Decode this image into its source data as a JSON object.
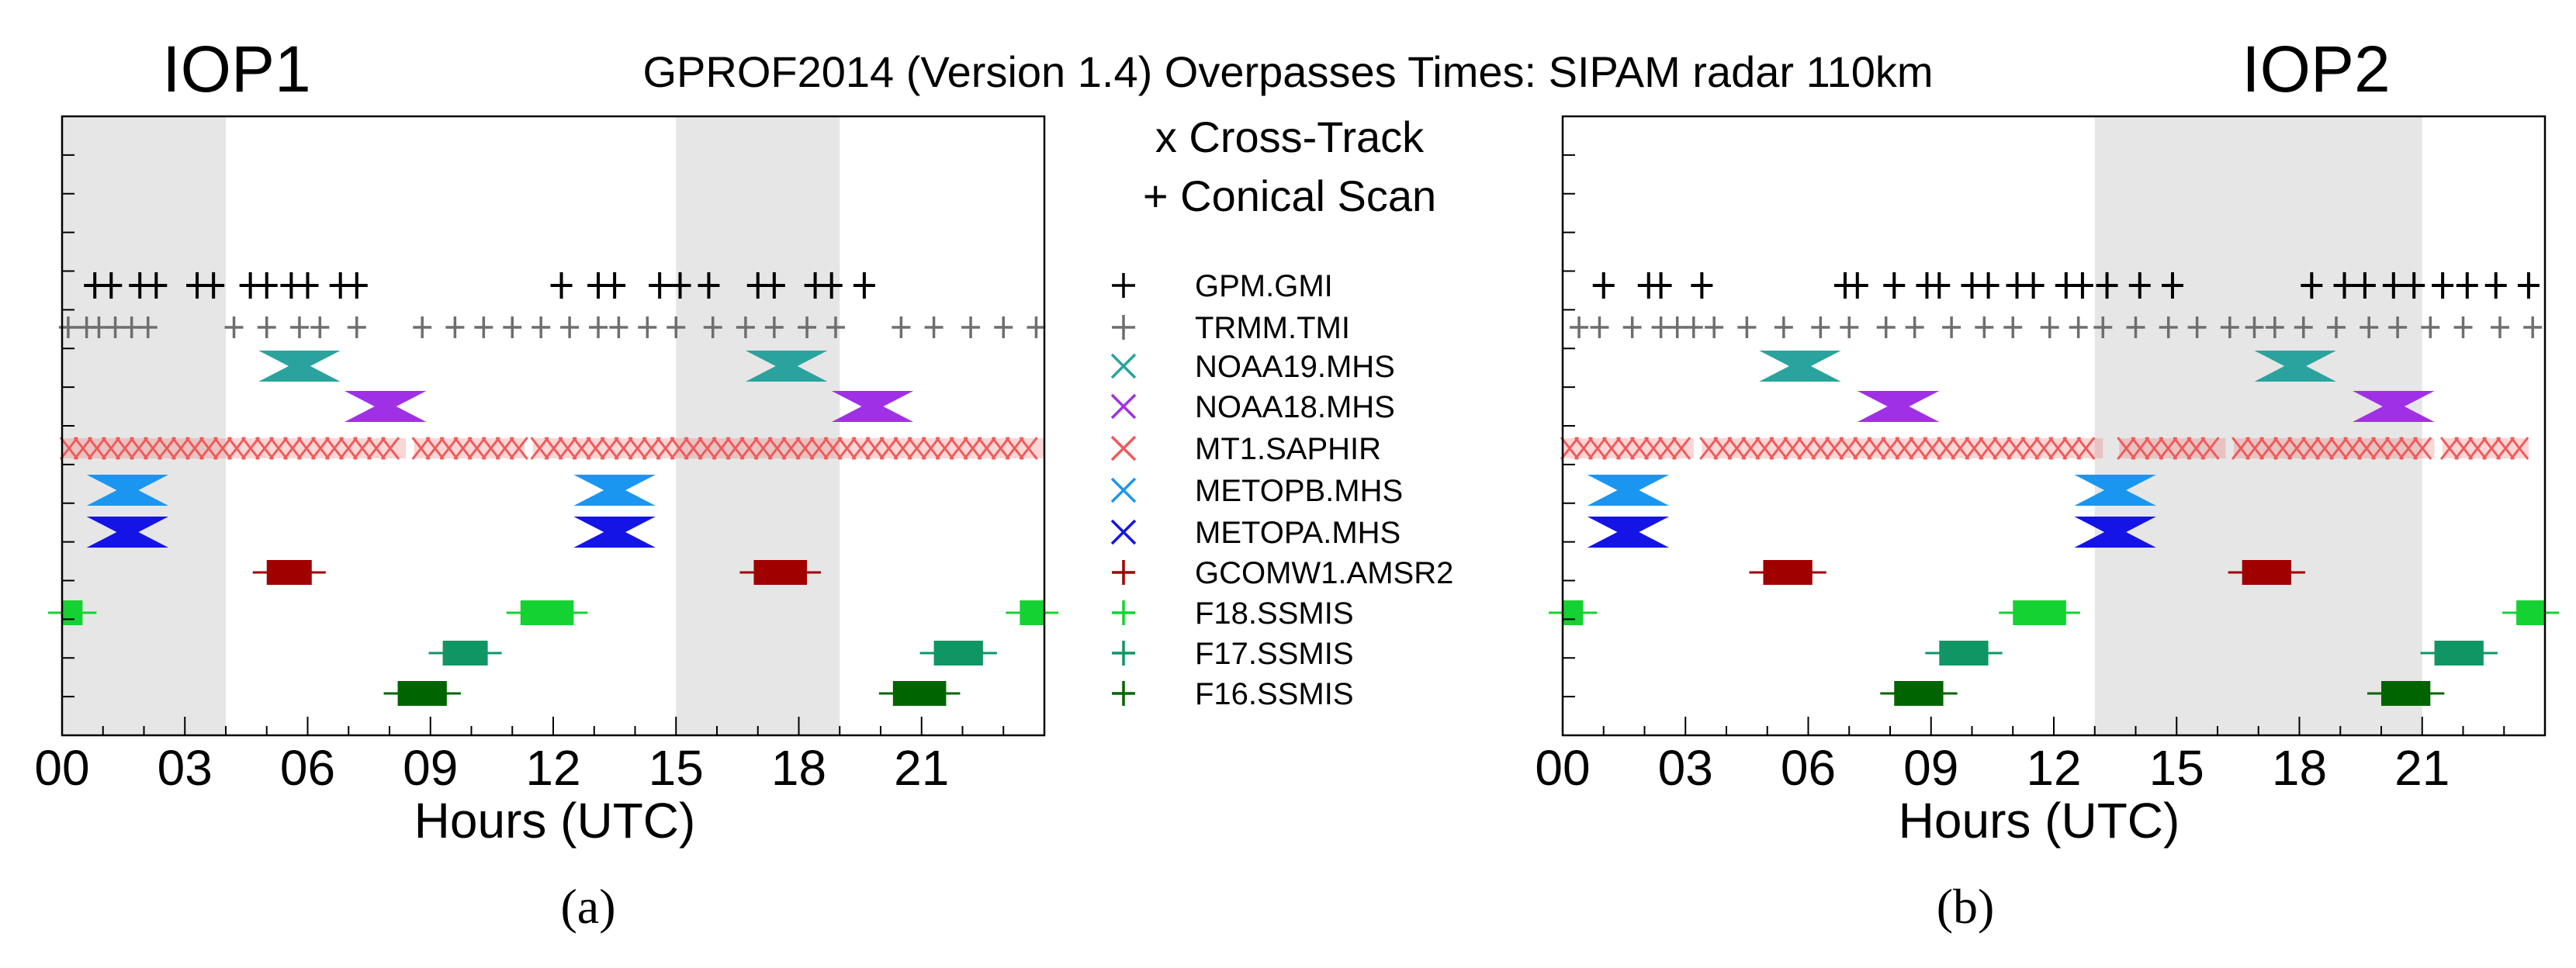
{
  "title": "GPROF2014 (Version 1.4) Overpasses Times: SIPAM radar 110km",
  "legend_header": [
    "x Cross-Track",
    "+ Conical Scan"
  ],
  "sensors": [
    {
      "name": "GPM.GMI",
      "color": "#000000",
      "marker": "plus"
    },
    {
      "name": "TRMM.TMI",
      "color": "#6e6e6e",
      "marker": "plus"
    },
    {
      "name": "NOAA19.MHS",
      "color": "#2aa39e",
      "marker": "x"
    },
    {
      "name": "NOAA18.MHS",
      "color": "#a030e6",
      "marker": "x"
    },
    {
      "name": "MT1.SAPHIR",
      "color": "#f05a5a",
      "marker": "x"
    },
    {
      "name": "METOPB.MHS",
      "color": "#1a96f0",
      "marker": "x"
    },
    {
      "name": "METOPA.MHS",
      "color": "#1414e6",
      "marker": "x"
    },
    {
      "name": "GCOMW1.AMSR2",
      "color": "#a00000",
      "marker": "plus"
    },
    {
      "name": "F18.SSMIS",
      "color": "#14d232",
      "marker": "plus"
    },
    {
      "name": "F17.SSMIS",
      "color": "#0f9664",
      "marker": "plus"
    },
    {
      "name": "F16.SSMIS",
      "color": "#006400",
      "marker": "plus"
    }
  ],
  "chart_data": [
    {
      "type": "scatter",
      "title": "IOP1",
      "label": "(a)",
      "xlabel": "Hours (UTC)",
      "xlim": [
        0,
        24
      ],
      "xticks": [
        0,
        3,
        6,
        9,
        12,
        15,
        18,
        21
      ],
      "xtick_labels": [
        "00",
        "03",
        "06",
        "09",
        "12",
        "15",
        "18",
        "21"
      ],
      "shaded_intervals": [
        [
          0,
          4
        ],
        [
          15,
          19
        ]
      ],
      "series": [
        {
          "name": "GPM.GMI",
          "x": [
            0.8,
            1.2,
            1.9,
            2.3,
            3.3,
            3.7,
            4.6,
            5.0,
            5.6,
            6.0,
            6.8,
            7.2,
            12.2,
            13.1,
            13.5,
            14.6,
            15.1,
            15.8,
            17.0,
            17.4,
            18.4,
            18.8,
            19.6
          ]
        },
        {
          "name": "TRMM.TMI",
          "x": [
            0.15,
            0.6,
            0.9,
            1.3,
            1.7,
            2.1,
            4.2,
            5.0,
            5.8,
            6.3,
            7.2,
            8.8,
            9.6,
            10.3,
            11.0,
            11.7,
            12.4,
            13.1,
            13.6,
            14.3,
            15.0,
            15.9,
            16.7,
            17.4,
            18.2,
            18.9,
            20.5,
            21.3,
            22.2,
            23.0,
            23.8
          ]
        },
        {
          "name": "NOAA19.MHS",
          "ranges": [
            [
              4.8,
              6.8
            ],
            [
              16.7,
              18.7
            ]
          ]
        },
        {
          "name": "NOAA18.MHS",
          "ranges": [
            [
              6.9,
              8.9
            ],
            [
              18.8,
              20.8
            ]
          ]
        },
        {
          "name": "MT1.SAPHIR",
          "ranges": [
            [
              0.0,
              8.4
            ],
            [
              8.6,
              11.3
            ],
            [
              11.5,
              24.0
            ]
          ]
        },
        {
          "name": "METOPB.MHS",
          "ranges": [
            [
              0.6,
              2.6
            ],
            [
              12.5,
              14.5
            ]
          ]
        },
        {
          "name": "METOPA.MHS",
          "ranges": [
            [
              0.6,
              2.6
            ],
            [
              12.5,
              14.5
            ]
          ]
        },
        {
          "name": "GCOMW1.AMSR2",
          "ranges": [
            [
              5.0,
              6.1
            ],
            [
              16.9,
              18.2
            ]
          ]
        },
        {
          "name": "F18.SSMIS",
          "ranges": [
            [
              0.0,
              0.5
            ],
            [
              11.2,
              12.5
            ],
            [
              23.4,
              24.0
            ]
          ]
        },
        {
          "name": "F17.SSMIS",
          "ranges": [
            [
              9.3,
              10.4
            ],
            [
              21.3,
              22.5
            ]
          ]
        },
        {
          "name": "F16.SSMIS",
          "ranges": [
            [
              8.2,
              9.4
            ],
            [
              20.3,
              21.6
            ]
          ]
        }
      ]
    },
    {
      "type": "scatter",
      "title": "IOP2",
      "label": "(b)",
      "xlabel": "Hours (UTC)",
      "xlim": [
        0,
        24
      ],
      "xticks": [
        0,
        3,
        6,
        9,
        12,
        15,
        18,
        21
      ],
      "xtick_labels": [
        "00",
        "03",
        "06",
        "09",
        "12",
        "15",
        "18",
        "21"
      ],
      "shaded_intervals": [
        [
          13,
          21
        ]
      ],
      "series": [
        {
          "name": "GPM.GMI",
          "x": [
            1.0,
            2.1,
            2.4,
            3.4,
            6.9,
            7.2,
            8.1,
            8.9,
            9.2,
            10.0,
            10.4,
            11.1,
            11.5,
            12.3,
            12.7,
            13.3,
            14.1,
            14.9,
            18.3,
            19.1,
            19.6,
            20.3,
            20.8,
            21.5,
            22.1,
            22.8,
            23.6
          ]
        },
        {
          "name": "TRMM.TMI",
          "x": [
            0.4,
            0.9,
            1.7,
            2.4,
            2.8,
            3.2,
            3.7,
            4.5,
            5.4,
            6.3,
            7.0,
            7.9,
            8.6,
            9.5,
            10.3,
            11.0,
            11.9,
            12.6,
            13.2,
            14.0,
            14.8,
            15.5,
            16.3,
            16.9,
            17.4,
            18.1,
            18.9,
            19.7,
            20.4,
            21.2,
            22.0,
            22.9,
            23.7
          ]
        },
        {
          "name": "NOAA19.MHS",
          "ranges": [
            [
              4.8,
              6.8
            ],
            [
              16.9,
              18.9
            ]
          ]
        },
        {
          "name": "NOAA18.MHS",
          "ranges": [
            [
              7.2,
              9.2
            ],
            [
              19.3,
              21.3
            ]
          ]
        },
        {
          "name": "MT1.SAPHIR",
          "ranges": [
            [
              0.0,
              3.2
            ],
            [
              3.4,
              13.2
            ],
            [
              13.6,
              16.2
            ],
            [
              16.4,
              21.3
            ],
            [
              21.5,
              23.6
            ]
          ]
        },
        {
          "name": "METOPB.MHS",
          "ranges": [
            [
              0.6,
              2.6
            ],
            [
              12.5,
              14.5
            ]
          ]
        },
        {
          "name": "METOPA.MHS",
          "ranges": [
            [
              0.6,
              2.6
            ],
            [
              12.5,
              14.5
            ]
          ]
        },
        {
          "name": "GCOMW1.AMSR2",
          "ranges": [
            [
              4.9,
              6.1
            ],
            [
              16.6,
              17.8
            ]
          ]
        },
        {
          "name": "F18.SSMIS",
          "ranges": [
            [
              0.0,
              0.5
            ],
            [
              11.0,
              12.3
            ],
            [
              23.3,
              24.0
            ]
          ]
        },
        {
          "name": "F17.SSMIS",
          "ranges": [
            [
              9.2,
              10.4
            ],
            [
              21.3,
              22.5
            ]
          ]
        },
        {
          "name": "F16.SSMIS",
          "ranges": [
            [
              8.1,
              9.3
            ],
            [
              20.0,
              21.2
            ]
          ]
        }
      ]
    }
  ]
}
